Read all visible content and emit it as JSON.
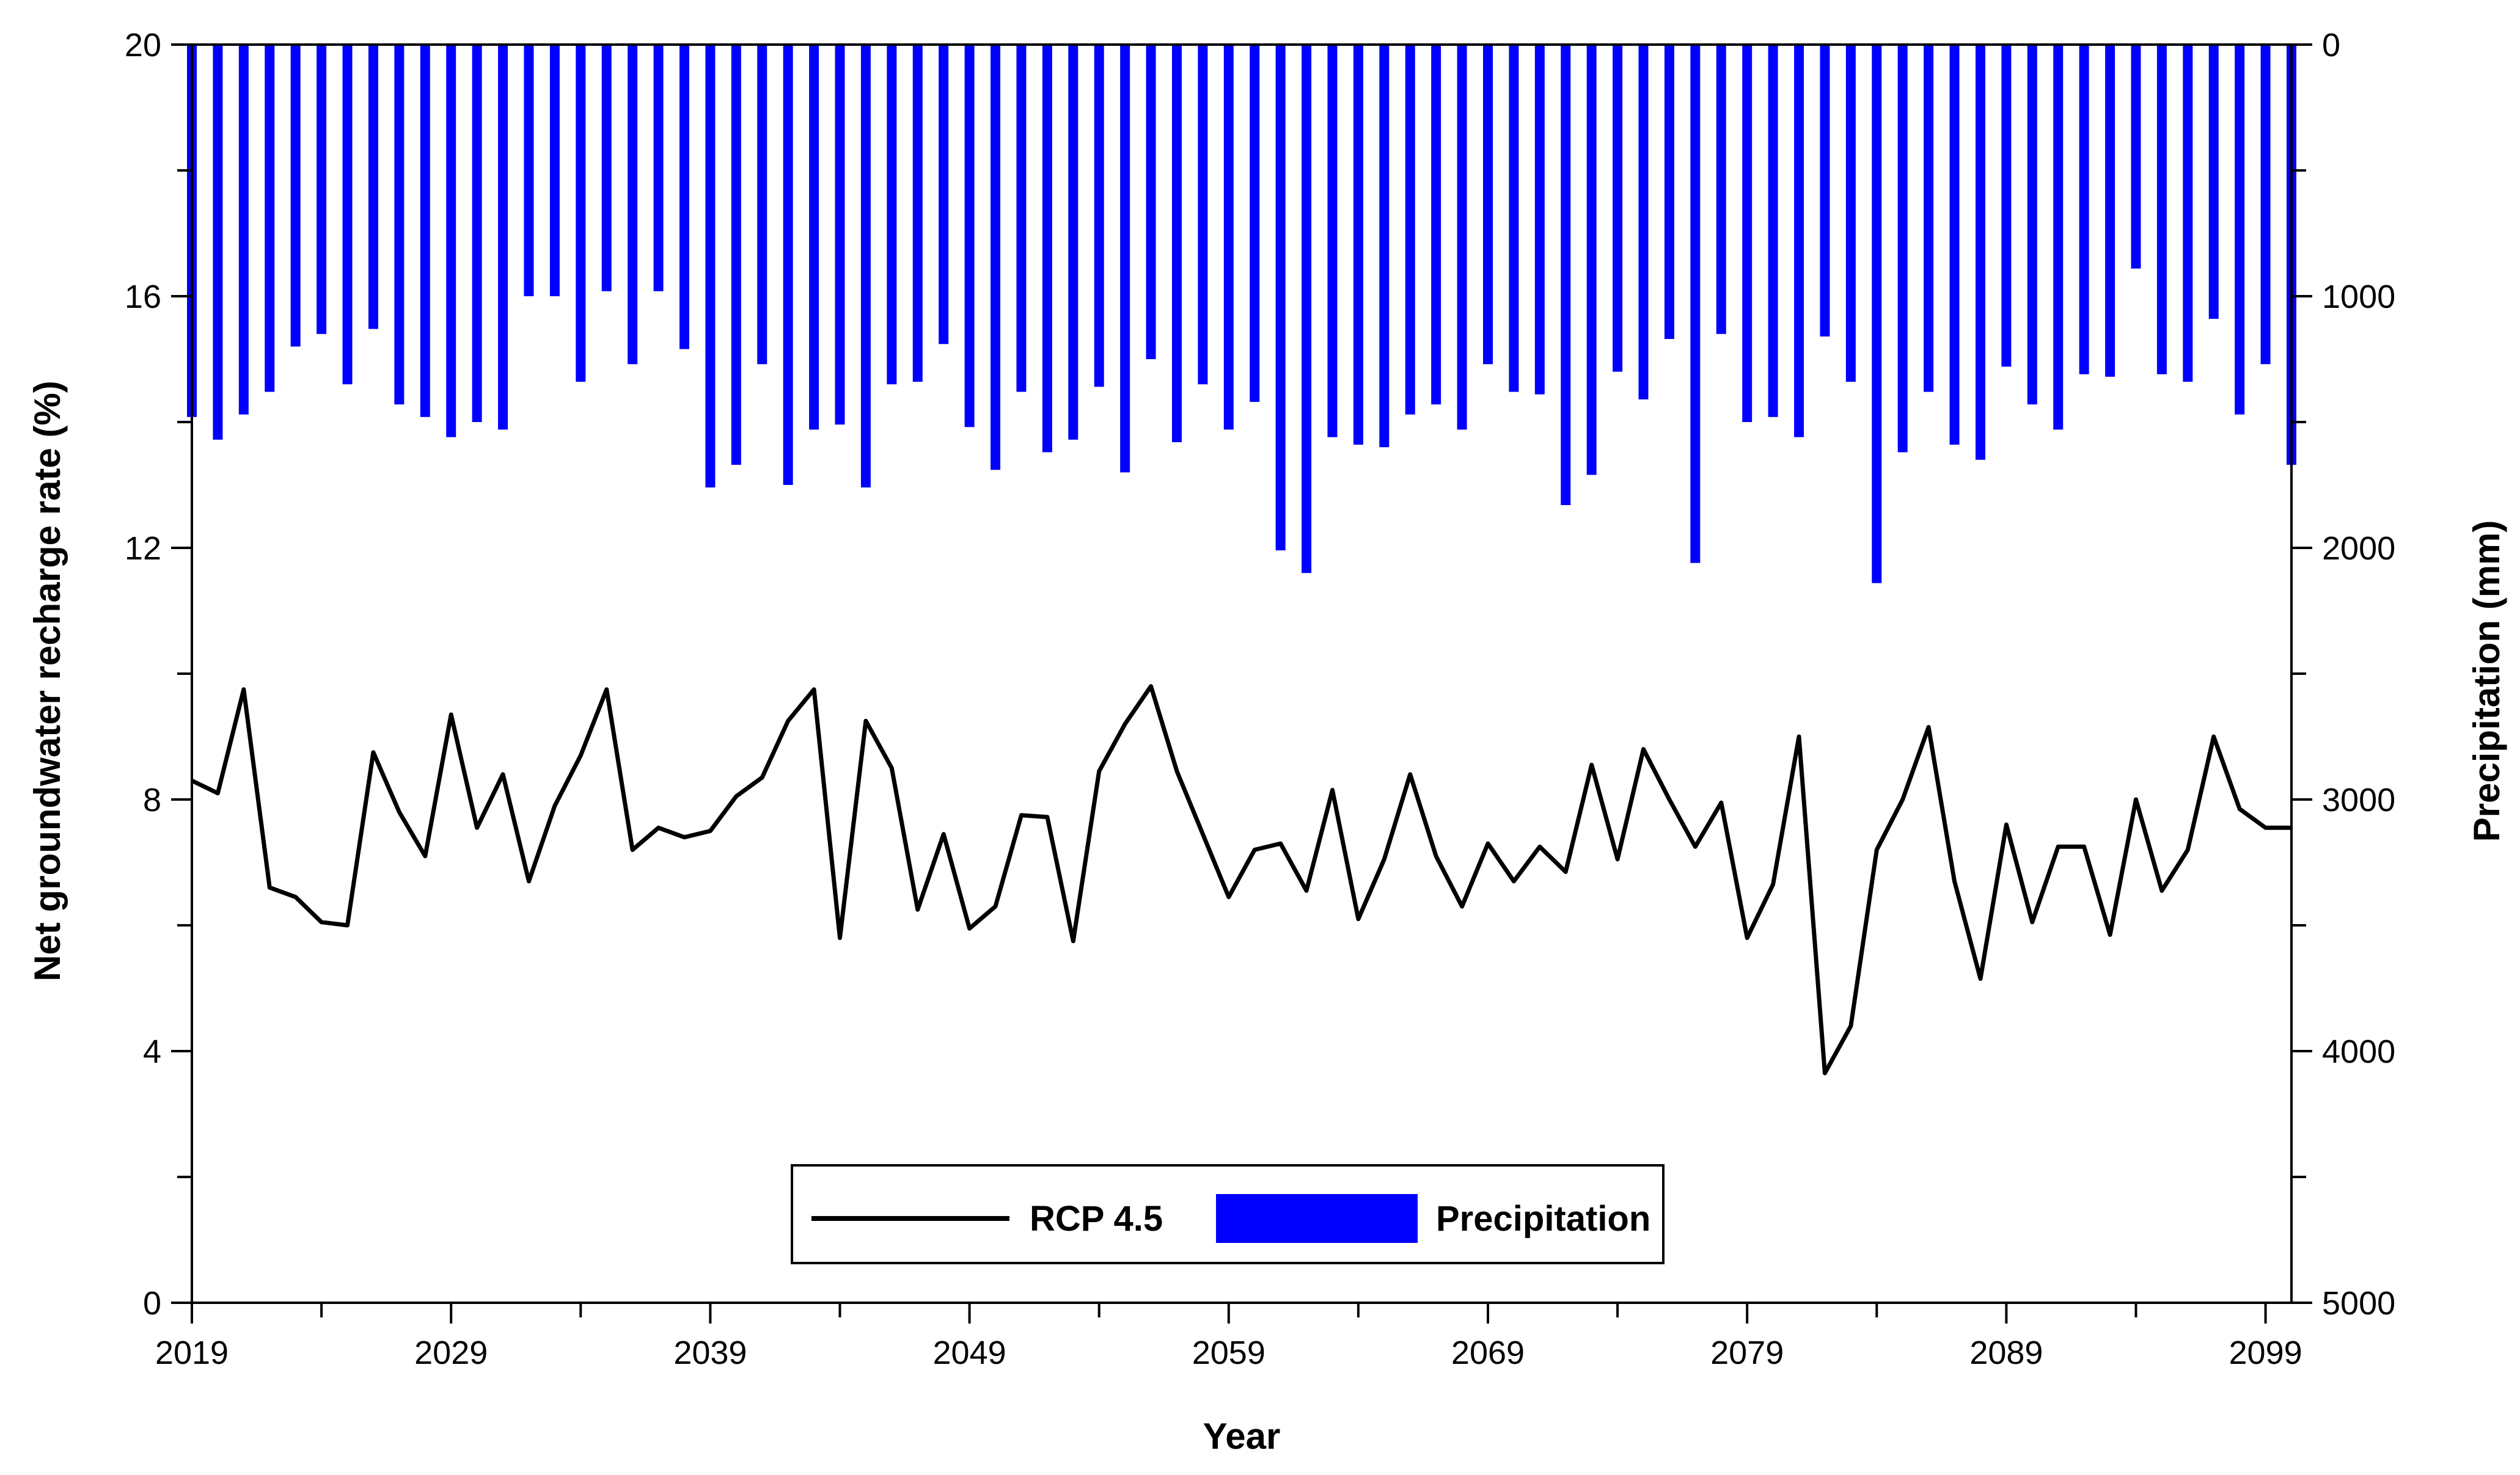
{
  "chart_data": {
    "type": "bar+line",
    "title": "",
    "xlabel": "Year",
    "ylabel_left": "Net groundwater recharge rate (%)",
    "ylabel_right": "Precipitation (mm)",
    "xlim": [
      2019,
      2100
    ],
    "ylim_left": [
      0,
      20
    ],
    "ylim_right": [
      5000,
      0
    ],
    "x_ticks": [
      "2019",
      "2029",
      "2039",
      "2049",
      "2059",
      "2069",
      "2079",
      "2089",
      "2099"
    ],
    "y_left_ticks": [
      "0",
      "4",
      "8",
      "12",
      "16",
      "20"
    ],
    "y_right_ticks": [
      "5000",
      "4000",
      "3000",
      "2000",
      "1000",
      "0"
    ],
    "grid": false,
    "legend_position": "bottom-center",
    "colors": {
      "bar": "#0000FF",
      "line": "#000000"
    },
    "years": [
      2019,
      2020,
      2021,
      2022,
      2023,
      2024,
      2025,
      2026,
      2027,
      2028,
      2029,
      2030,
      2031,
      2032,
      2033,
      2034,
      2035,
      2036,
      2037,
      2038,
      2039,
      2040,
      2041,
      2042,
      2043,
      2044,
      2045,
      2046,
      2047,
      2048,
      2049,
      2050,
      2051,
      2052,
      2053,
      2054,
      2055,
      2056,
      2057,
      2058,
      2059,
      2060,
      2061,
      2062,
      2063,
      2064,
      2065,
      2066,
      2067,
      2068,
      2069,
      2070,
      2071,
      2072,
      2073,
      2074,
      2075,
      2076,
      2077,
      2078,
      2079,
      2080,
      2081,
      2082,
      2083,
      2084,
      2085,
      2086,
      2087,
      2088,
      2089,
      2090,
      2091,
      2092,
      2093,
      2094,
      2095,
      2096,
      2097,
      2098,
      2099,
      2100
    ],
    "series": [
      {
        "name": "RCP 4.5",
        "type": "line",
        "axis": "left",
        "values": [
          8.3,
          8.1,
          9.75,
          6.6,
          6.45,
          6.05,
          6.0,
          8.75,
          7.8,
          7.1,
          9.35,
          7.55,
          8.4,
          6.7,
          7.9,
          8.7,
          9.75,
          7.2,
          7.55,
          7.4,
          7.5,
          8.05,
          8.35,
          9.25,
          9.75,
          5.8,
          9.25,
          8.5,
          6.25,
          7.45,
          5.95,
          6.3,
          7.75,
          7.72,
          5.75,
          8.45,
          9.2,
          9.8,
          8.45,
          7.45,
          6.45,
          7.2,
          7.3,
          6.55,
          8.15,
          6.1,
          7.05,
          8.4,
          7.1,
          6.3,
          7.3,
          6.7,
          7.25,
          6.85,
          8.55,
          7.05,
          8.8,
          8.0,
          7.25,
          7.95,
          5.8,
          6.65,
          9.0,
          3.65,
          4.4,
          7.2,
          8.0,
          9.15,
          6.7,
          5.15,
          7.6,
          6.05,
          7.25,
          7.25,
          5.85,
          8.0,
          6.55,
          7.2,
          9.0,
          7.85,
          7.55,
          7.55
        ]
      },
      {
        "name": "Precipitation",
        "type": "bar",
        "axis": "right",
        "values": [
          1480,
          1570,
          1470,
          1380,
          1200,
          1150,
          1350,
          1130,
          1430,
          1480,
          1560,
          1500,
          1530,
          1000,
          1000,
          1340,
          980,
          1270,
          980,
          1210,
          1760,
          1670,
          1270,
          1750,
          1530,
          1510,
          1760,
          1350,
          1340,
          1190,
          1520,
          1690,
          1380,
          1620,
          1570,
          1360,
          1700,
          1250,
          1580,
          1350,
          1530,
          1420,
          2010,
          2100,
          1560,
          1590,
          1600,
          1470,
          1430,
          1530,
          1270,
          1380,
          1390,
          1830,
          1710,
          1300,
          1410,
          1170,
          2060,
          1150,
          1500,
          1480,
          1560,
          1160,
          1340,
          2140,
          1620,
          1380,
          1590,
          1650,
          1280,
          1430,
          1530,
          1310,
          1320,
          890,
          1310,
          1340,
          1090,
          1470,
          1270,
          1670
        ]
      }
    ]
  }
}
